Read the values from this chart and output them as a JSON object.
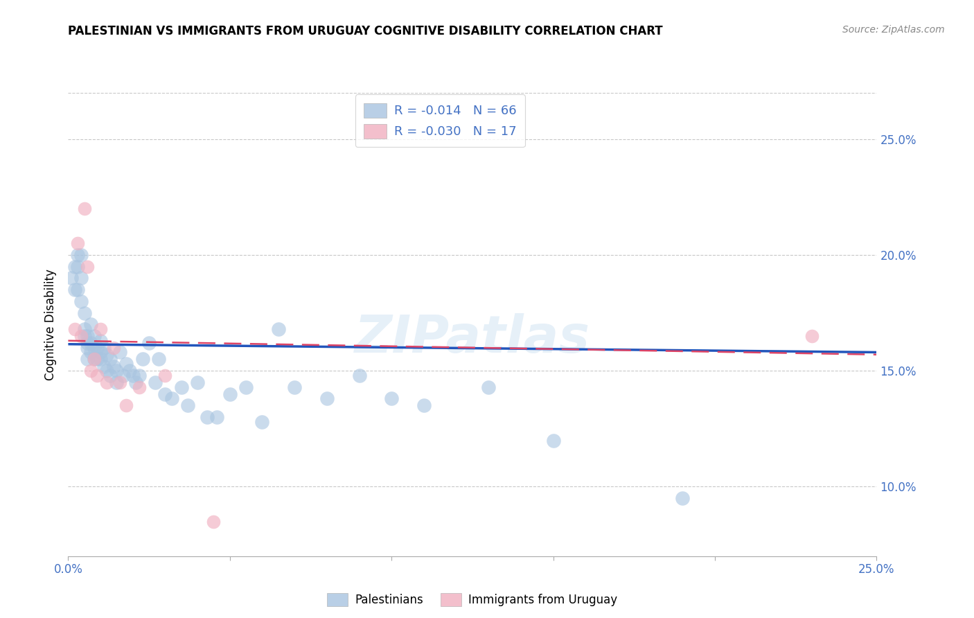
{
  "title": "PALESTINIAN VS IMMIGRANTS FROM URUGUAY COGNITIVE DISABILITY CORRELATION CHART",
  "source": "Source: ZipAtlas.com",
  "ylabel": "Cognitive Disability",
  "xlim": [
    0.0,
    0.25
  ],
  "ylim": [
    0.07,
    0.27
  ],
  "y_ticks": [
    0.1,
    0.15,
    0.2,
    0.25
  ],
  "grid_color": "#c8c8c8",
  "watermark": "ZIPatlas",
  "blue_color": "#a8c4e0",
  "pink_color": "#f0b0c0",
  "blue_line_color": "#2255bb",
  "pink_line_color": "#dd4466",
  "legend_R_blue": "R = -0.014",
  "legend_N_blue": "N = 66",
  "legend_R_pink": "R = -0.030",
  "legend_N_pink": "N = 17",
  "blue_scatter_x": [
    0.001,
    0.002,
    0.002,
    0.003,
    0.003,
    0.003,
    0.004,
    0.004,
    0.004,
    0.005,
    0.005,
    0.005,
    0.006,
    0.006,
    0.006,
    0.006,
    0.007,
    0.007,
    0.007,
    0.008,
    0.008,
    0.008,
    0.009,
    0.009,
    0.01,
    0.01,
    0.01,
    0.011,
    0.011,
    0.012,
    0.012,
    0.013,
    0.013,
    0.014,
    0.015,
    0.015,
    0.016,
    0.017,
    0.018,
    0.019,
    0.02,
    0.021,
    0.022,
    0.023,
    0.025,
    0.027,
    0.028,
    0.03,
    0.032,
    0.035,
    0.037,
    0.04,
    0.043,
    0.046,
    0.05,
    0.055,
    0.06,
    0.065,
    0.07,
    0.08,
    0.09,
    0.1,
    0.11,
    0.13,
    0.15,
    0.19
  ],
  "blue_scatter_y": [
    0.19,
    0.195,
    0.185,
    0.2,
    0.195,
    0.185,
    0.2,
    0.19,
    0.18,
    0.175,
    0.168,
    0.165,
    0.162,
    0.165,
    0.16,
    0.155,
    0.162,
    0.158,
    0.17,
    0.16,
    0.155,
    0.165,
    0.16,
    0.155,
    0.158,
    0.163,
    0.155,
    0.16,
    0.152,
    0.157,
    0.15,
    0.155,
    0.148,
    0.152,
    0.15,
    0.145,
    0.158,
    0.148,
    0.153,
    0.15,
    0.148,
    0.145,
    0.148,
    0.155,
    0.162,
    0.145,
    0.155,
    0.14,
    0.138,
    0.143,
    0.135,
    0.145,
    0.13,
    0.13,
    0.14,
    0.143,
    0.128,
    0.168,
    0.143,
    0.138,
    0.148,
    0.138,
    0.135,
    0.143,
    0.12,
    0.095
  ],
  "pink_scatter_x": [
    0.002,
    0.003,
    0.004,
    0.005,
    0.006,
    0.007,
    0.008,
    0.009,
    0.01,
    0.012,
    0.014,
    0.016,
    0.018,
    0.022,
    0.03,
    0.045,
    0.23
  ],
  "pink_scatter_y": [
    0.168,
    0.205,
    0.165,
    0.22,
    0.195,
    0.15,
    0.155,
    0.148,
    0.168,
    0.145,
    0.16,
    0.145,
    0.135,
    0.143,
    0.148,
    0.085,
    0.165
  ],
  "blue_line_y_start": 0.1615,
  "blue_line_y_end": 0.158,
  "pink_line_y_start": 0.163,
  "pink_line_y_end": 0.157,
  "legend_label_blue": "Palestinians",
  "legend_label_pink": "Immigrants from Uruguay"
}
